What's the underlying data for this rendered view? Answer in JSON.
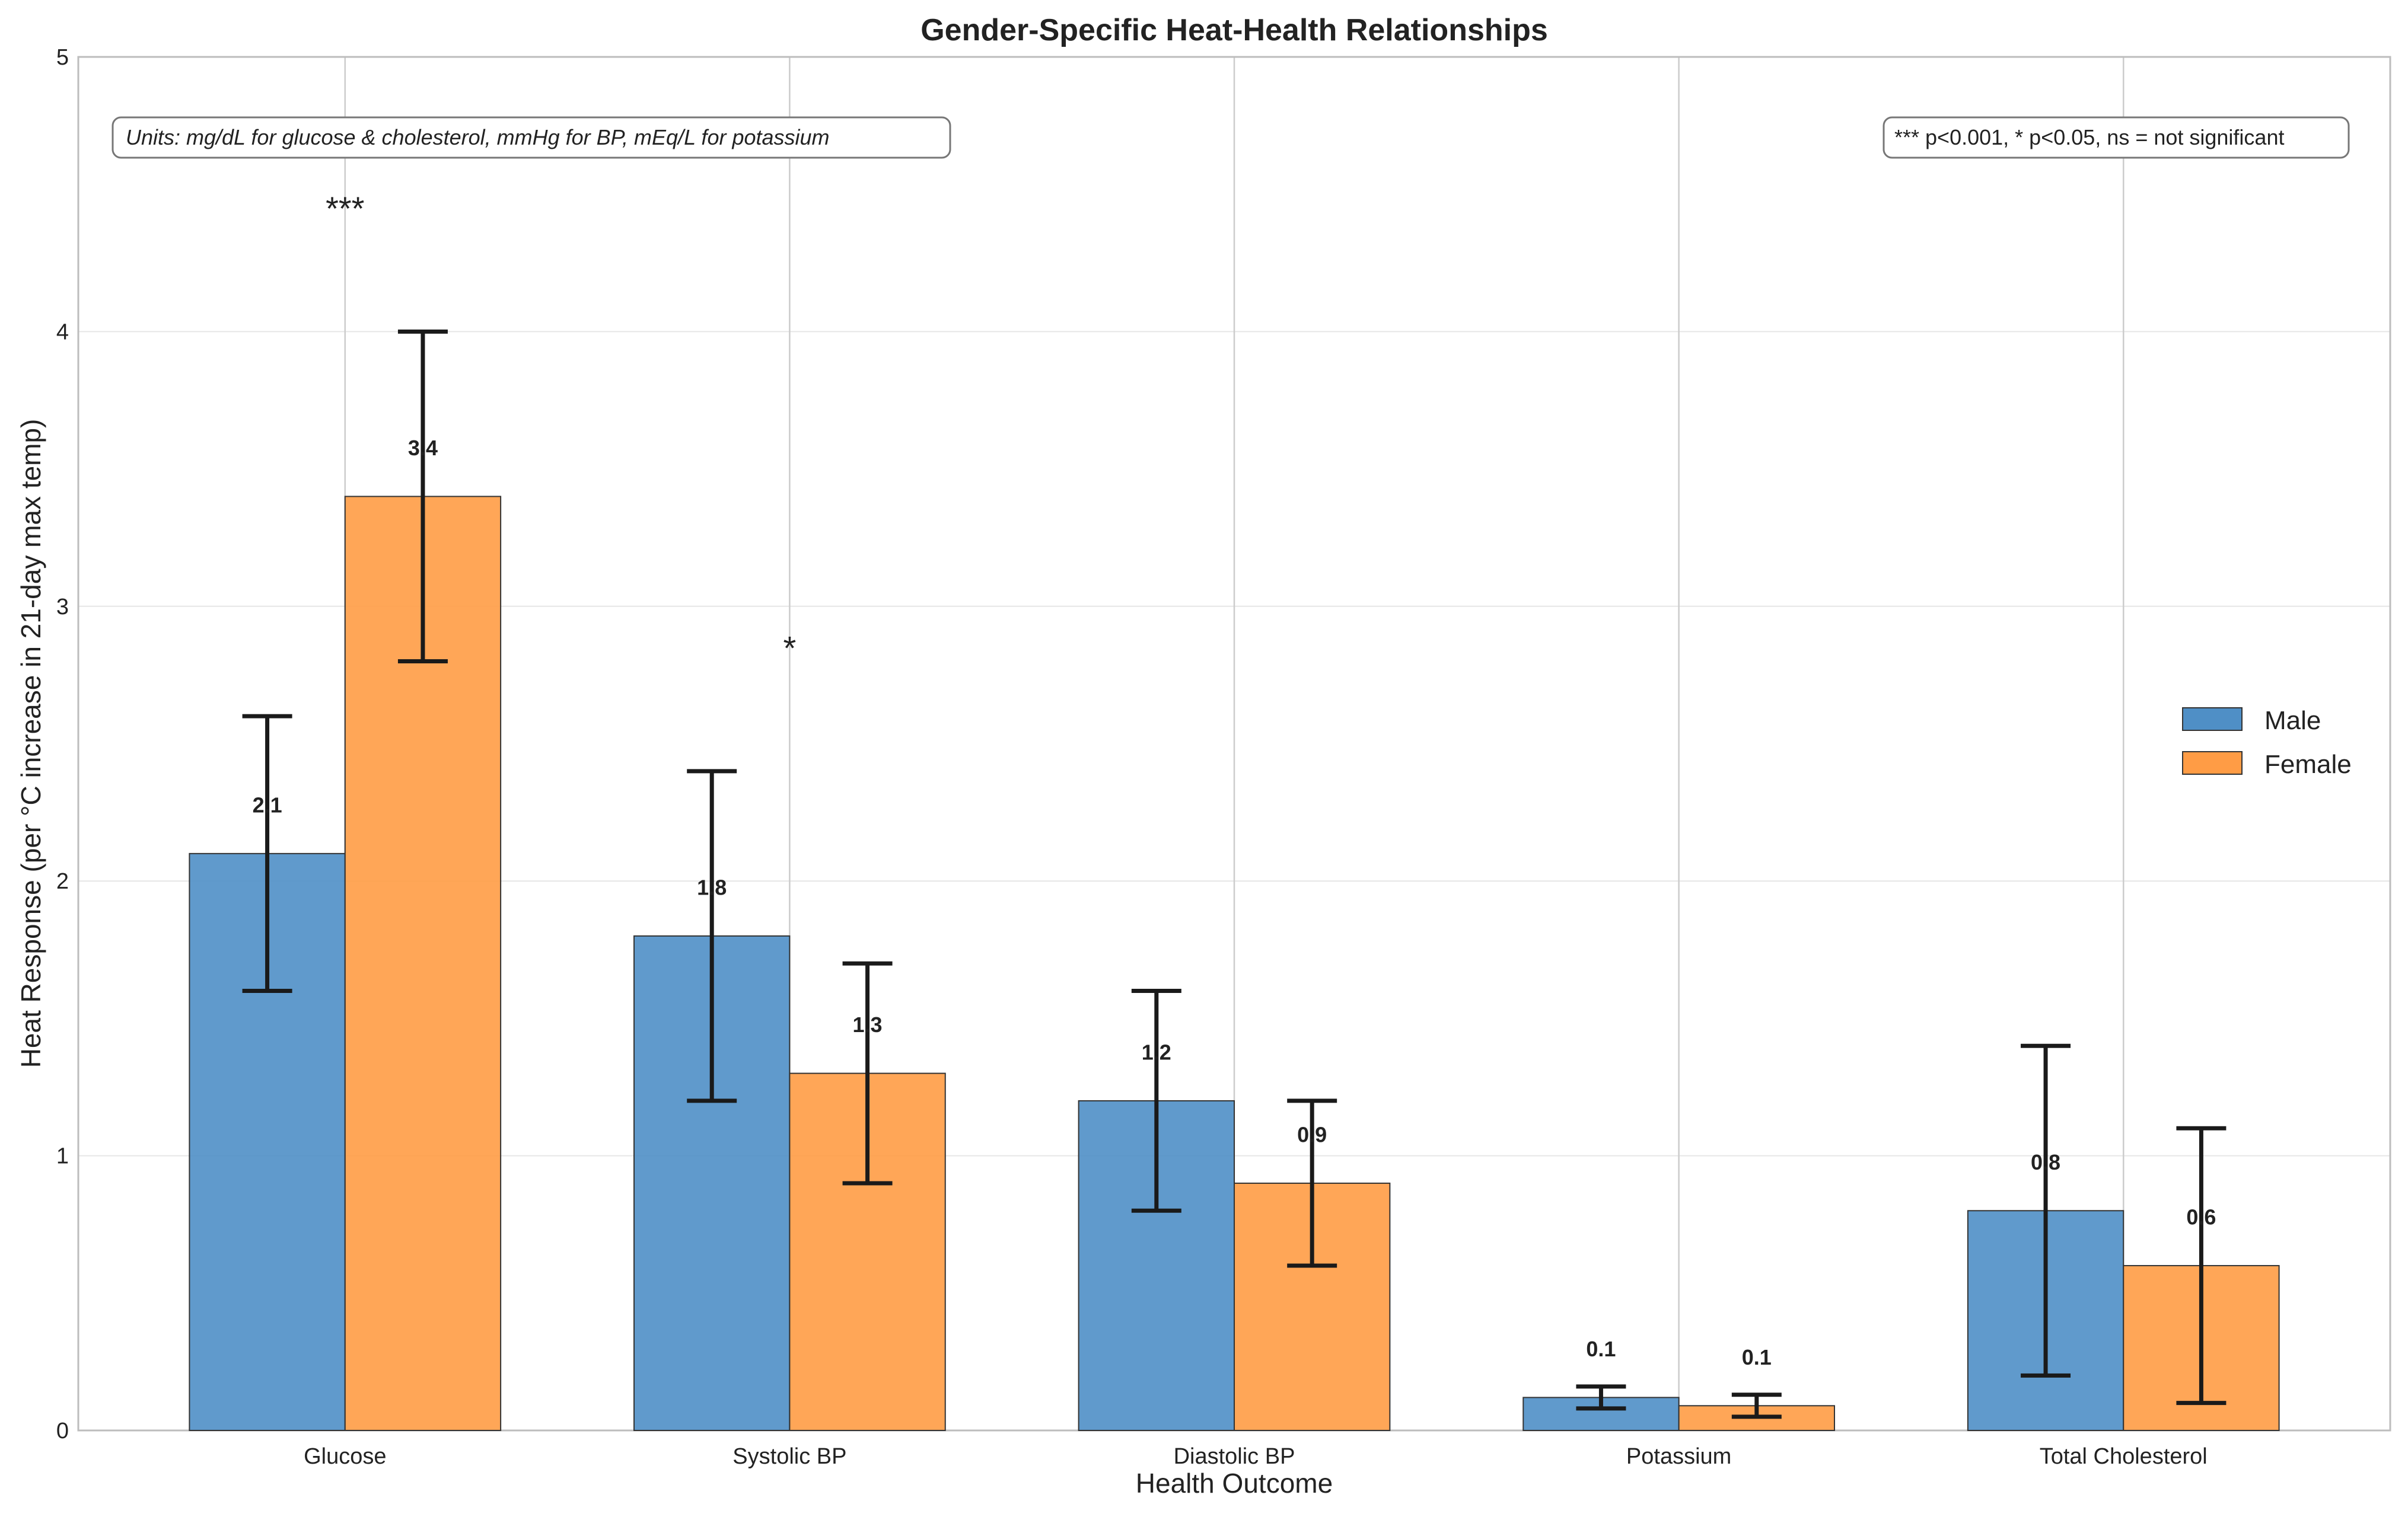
{
  "chart_data": {
    "type": "bar",
    "title": "Gender-Specific Heat-Health Relationships",
    "xlabel": "Health Outcome",
    "ylabel": "Heat Response (per °C increase in 21-day max temp)",
    "categories": [
      "Glucose",
      "Systolic BP",
      "Diastolic BP",
      "Potassium",
      "Total Cholesterol"
    ],
    "series": [
      {
        "name": "Male",
        "color": "#4f8fc6",
        "values": [
          2.1,
          1.8,
          1.2,
          0.12,
          0.8
        ],
        "labels": [
          "2.1",
          "1.8",
          "1.2",
          "0.1",
          "0.8"
        ],
        "ci_low": [
          1.6,
          1.2,
          0.8,
          0.08,
          0.2
        ],
        "ci_high": [
          2.6,
          2.4,
          1.6,
          0.16,
          1.4
        ]
      },
      {
        "name": "Female",
        "color": "#ff9c45",
        "values": [
          3.4,
          1.3,
          0.9,
          0.09,
          0.6
        ],
        "labels": [
          "3.4",
          "1.3",
          "0.9",
          "0.1",
          "0.6"
        ],
        "ci_low": [
          2.8,
          0.9,
          0.6,
          0.05,
          0.1
        ],
        "ci_high": [
          4.0,
          1.7,
          1.2,
          0.13,
          1.1
        ]
      }
    ],
    "significance": [
      {
        "category": "Glucose",
        "label": "***",
        "y": 4.45
      },
      {
        "category": "Systolic BP",
        "label": "*",
        "y": 2.85
      }
    ],
    "ylim": [
      0,
      5
    ],
    "yticks": [
      "0",
      "1",
      "2",
      "3",
      "4",
      "5"
    ],
    "grid": true,
    "legend_position": "center-right",
    "annotations": {
      "units": "Units: mg/dL for glucose & cholesterol, mmHg for BP, mEq/L for potassium",
      "significance_key": "*** p<0.001, * p<0.05, ns = not significant"
    }
  }
}
